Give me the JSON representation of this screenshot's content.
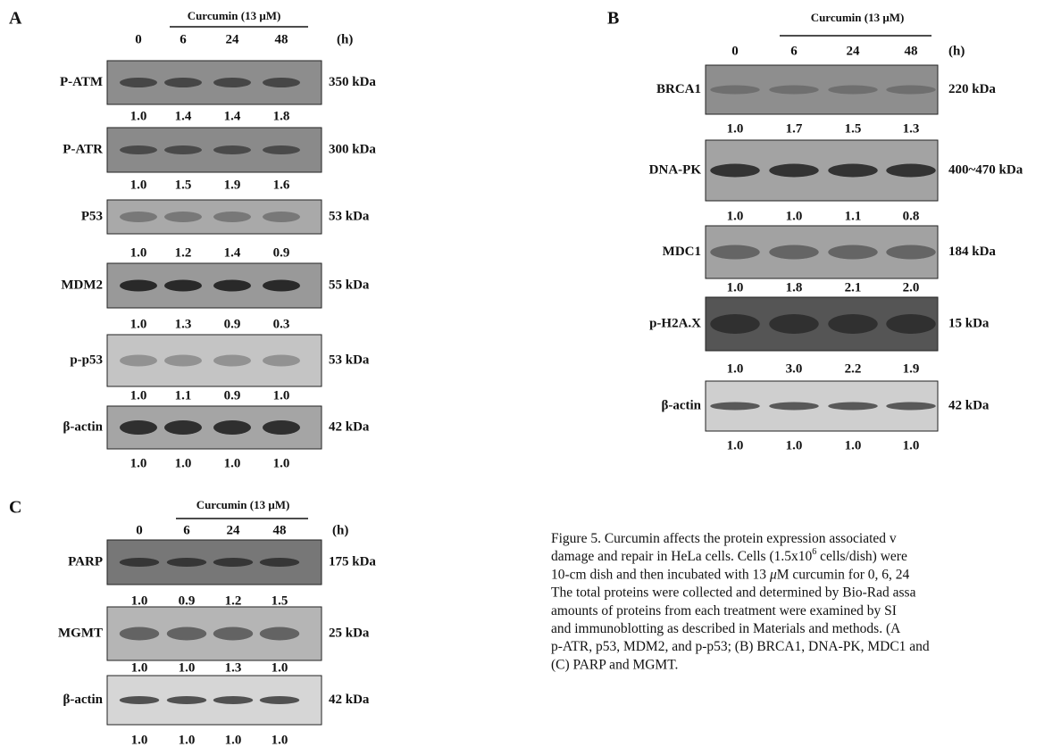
{
  "panels": [
    {
      "letter": "A",
      "treatment": "Curcumin (13 μM)",
      "timepoints": [
        "0",
        "6",
        "24",
        "48"
      ],
      "unit": "(h)",
      "blots": [
        {
          "protein": "P-ATM",
          "size": "350 kDa",
          "values": [
            "1.0",
            "1.4",
            "1.4",
            "1.8"
          ]
        },
        {
          "protein": "P-ATR",
          "size": "300 kDa",
          "values": [
            "1.0",
            "1.5",
            "1.9",
            "1.6"
          ]
        },
        {
          "protein": "P53",
          "size": "53 kDa",
          "values": [
            "1.0",
            "1.2",
            "1.4",
            "0.9"
          ]
        },
        {
          "protein": "MDM2",
          "size": "55 kDa",
          "values": [
            "1.0",
            "1.3",
            "0.9",
            "0.3"
          ]
        },
        {
          "protein": "p-p53",
          "size": "53 kDa",
          "values": [
            "1.0",
            "1.1",
            "0.9",
            "1.0"
          ]
        },
        {
          "protein": "β-actin",
          "size": "42 kDa",
          "values": [
            "1.0",
            "1.0",
            "1.0",
            "1.0"
          ]
        }
      ]
    },
    {
      "letter": "B",
      "treatment": "Curcumin (13 μM)",
      "timepoints": [
        "0",
        "6",
        "24",
        "48"
      ],
      "unit": "(h)",
      "blots": [
        {
          "protein": "BRCA1",
          "size": "220 kDa",
          "values": [
            "1.0",
            "1.7",
            "1.5",
            "1.3"
          ]
        },
        {
          "protein": "DNA-PK",
          "size": "400~470 kDa",
          "values": [
            "1.0",
            "1.0",
            "1.1",
            "0.8"
          ]
        },
        {
          "protein": "MDC1",
          "size": "184 kDa",
          "values": [
            "1.0",
            "1.8",
            "2.1",
            "2.0"
          ]
        },
        {
          "protein": "p-H2A.X",
          "size": "15 kDa",
          "values": [
            "1.0",
            "3.0",
            "2.2",
            "1.9"
          ]
        },
        {
          "protein": "β-actin",
          "size": "42 kDa",
          "values": [
            "1.0",
            "1.0",
            "1.0",
            "1.0"
          ]
        }
      ]
    },
    {
      "letter": "C",
      "treatment": "Curcumin (13 μM)",
      "timepoints": [
        "0",
        "6",
        "24",
        "48"
      ],
      "unit": "(h)",
      "blots": [
        {
          "protein": "PARP",
          "size": "175 kDa",
          "values": [
            "1.0",
            "0.9",
            "1.2",
            "1.5"
          ]
        },
        {
          "protein": "MGMT",
          "size": "25 kDa",
          "values": [
            "1.0",
            "1.0",
            "1.3",
            "1.0"
          ]
        },
        {
          "protein": "β-actin",
          "size": "42 kDa",
          "values": [
            "1.0",
            "1.0",
            "1.0",
            "1.0"
          ]
        }
      ]
    }
  ],
  "caption": {
    "lines": [
      [
        "Figure 5. Curcumin affects the protein expression associated v"
      ],
      [
        "damage and repair in HeLa cells. Cells (1.5x10",
        {
          "text": "6",
          "sup": true
        },
        " cells/dish) were"
      ],
      [
        "10-cm dish and then incubated with 13 ",
        {
          "text": "μ",
          "italic": true
        },
        "M curcumin for 0, 6, 24"
      ],
      [
        "The total proteins were collected and determined by Bio-Rad assa"
      ],
      [
        "amounts of proteins from each treatment were examined by SI"
      ],
      [
        "and immunoblotting as described in Materials and methods. (A"
      ],
      [
        "p-ATR, p53, MDM2, and p-p53; (B) BRCA1, DNA-PK, MDC1 and"
      ],
      [
        "(C) PARP and MGMT."
      ]
    ]
  }
}
